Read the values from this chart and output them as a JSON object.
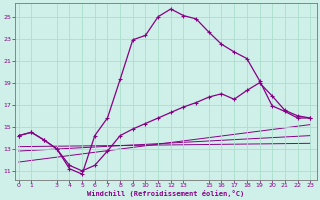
{
  "xlabel": "Windchill (Refroidissement éolien,°C)",
  "background_color": "#cff0e8",
  "line_color": "#880088",
  "grid_color": "#aaddcc",
  "xticks": [
    0,
    1,
    3,
    4,
    5,
    6,
    7,
    8,
    9,
    10,
    11,
    12,
    13,
    15,
    16,
    17,
    18,
    19,
    20,
    21,
    22,
    23
  ],
  "yticks": [
    11,
    13,
    15,
    17,
    19,
    21,
    23,
    25
  ],
  "xlim": [
    -0.3,
    23.5
  ],
  "ylim": [
    10.2,
    26.2
  ],
  "curve1_x": [
    0,
    1,
    2,
    3,
    4,
    5,
    6,
    7,
    8,
    9,
    10,
    11,
    12,
    13,
    14,
    15,
    16,
    17,
    18,
    19,
    20,
    21,
    22,
    23
  ],
  "curve1_y": [
    14.2,
    14.5,
    13.8,
    13.0,
    11.2,
    10.7,
    14.2,
    15.8,
    19.3,
    22.9,
    23.3,
    25.0,
    25.7,
    25.1,
    24.8,
    23.6,
    22.5,
    21.8,
    21.2,
    19.2,
    16.9,
    16.4,
    15.8,
    15.8
  ],
  "curve2_x": [
    0,
    1,
    2,
    3,
    4,
    5,
    6,
    7,
    8,
    9,
    10,
    11,
    12,
    13,
    14,
    15,
    16,
    17,
    18,
    19,
    20,
    21,
    22,
    23
  ],
  "curve2_y": [
    14.2,
    14.5,
    13.8,
    13.0,
    11.5,
    11.0,
    11.5,
    12.8,
    14.2,
    14.8,
    15.3,
    15.8,
    16.3,
    16.8,
    17.2,
    17.7,
    18.0,
    17.5,
    18.3,
    19.0,
    17.8,
    16.5,
    16.0,
    15.8
  ],
  "curve3_x": [
    0,
    23
  ],
  "curve3_y": [
    11.8,
    15.2
  ],
  "curve4_x": [
    0,
    23
  ],
  "curve4_y": [
    12.8,
    14.2
  ],
  "curve5_x": [
    0,
    23
  ],
  "curve5_y": [
    13.2,
    13.5
  ]
}
